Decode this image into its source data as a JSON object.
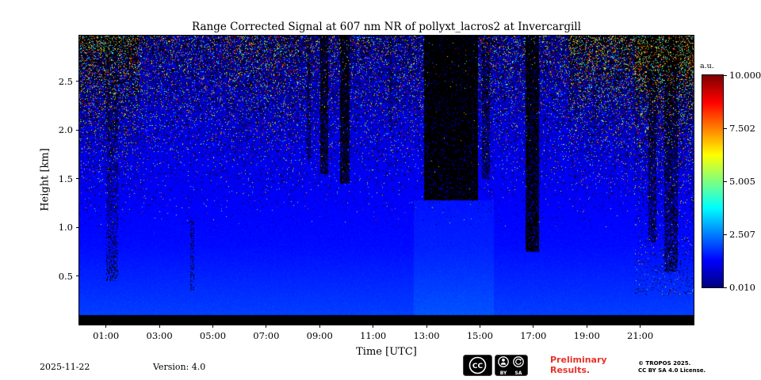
{
  "title": "Range Corrected Signal at 607 nm NR of pollyxt_lacros2 at Invercargill",
  "colors": {
    "preliminary_text": "#e8332a",
    "background_low_signal": "#0a2fe0",
    "missing_data": "#000000"
  },
  "chart_data": {
    "type": "heatmap",
    "title": "Range Corrected Signal at 607 nm NR of pollyxt_lacros2 at Invercargill",
    "xlabel": "Time [UTC]",
    "ylabel": "Height [km]",
    "x_range_hours": [
      0,
      23
    ],
    "y_range_km": [
      0,
      2.97
    ],
    "x_ticks": [
      "01:00",
      "03:00",
      "05:00",
      "07:00",
      "09:00",
      "11:00",
      "13:00",
      "15:00",
      "17:00",
      "19:00",
      "21:00"
    ],
    "x_tick_hours": [
      1,
      3,
      5,
      7,
      9,
      11,
      13,
      15,
      17,
      19,
      21
    ],
    "y_ticks": [
      "0.5",
      "1.0",
      "1.5",
      "2.0",
      "2.5"
    ],
    "y_tick_values": [
      0.5,
      1.0,
      1.5,
      2.0,
      2.5
    ],
    "colorbar": {
      "label": "a.u.",
      "ticks": [
        "10.000",
        "7.502",
        "5.005",
        "2.507",
        "0.010"
      ],
      "tick_values": [
        10.0,
        7.502,
        5.005,
        2.507,
        0.01
      ],
      "range": [
        0.01,
        10.0
      ],
      "colormap": "jet",
      "position": "right"
    },
    "grid": false,
    "legend": false,
    "background": {
      "base": 0.158,
      "slope_per_km": 0.028,
      "low_boost_below_km": 0.8,
      "low_boost_rate": 0.045,
      "jitter": 0.02,
      "overlap_black_km": 0.1,
      "bright_patches": [
        {
          "t0": 12.5,
          "t1": 15.5,
          "h0": 0.0,
          "h1": 1.28,
          "dv": 0.02
        }
      ]
    },
    "clouds": [
      {
        "t0": 1.0,
        "t1": 1.45,
        "h0": 0.45,
        "h1": 2.97,
        "d": 0.28
      },
      {
        "t0": 4.15,
        "t1": 4.3,
        "h0": 0.35,
        "h1": 1.1,
        "d": 0.3
      },
      {
        "t0": 8.5,
        "t1": 8.65,
        "h0": 1.7,
        "h1": 2.97,
        "d": 0.45
      },
      {
        "t0": 9.0,
        "t1": 9.3,
        "h0": 1.55,
        "h1": 2.97,
        "d": 0.7
      },
      {
        "t0": 9.75,
        "t1": 10.1,
        "h0": 1.45,
        "h1": 2.97,
        "d": 0.78
      },
      {
        "t0": 11.6,
        "t1": 11.72,
        "h0": 2.0,
        "h1": 2.97,
        "d": 0.3
      },
      {
        "t0": 12.9,
        "t1": 14.9,
        "h0": 1.28,
        "h1": 2.97,
        "d": 0.93
      },
      {
        "t0": 15.05,
        "t1": 15.35,
        "h0": 1.5,
        "h1": 2.97,
        "d": 0.5
      },
      {
        "t0": 16.7,
        "t1": 17.2,
        "h0": 0.75,
        "h1": 2.97,
        "d": 0.85
      },
      {
        "t0": 21.3,
        "t1": 21.6,
        "h0": 0.85,
        "h1": 2.97,
        "d": 0.5
      },
      {
        "t0": 21.9,
        "t1": 22.4,
        "h0": 0.55,
        "h1": 2.97,
        "d": 0.5
      }
    ],
    "noise": {
      "base_h_km": 0.9,
      "exponent": 1.8,
      "scale": 0.55,
      "color_fraction": 0.27,
      "column_boosts": [
        {
          "t0": 0.0,
          "t1": 2.2,
          "factor": 1.8
        },
        {
          "t0": 5.5,
          "t1": 8.2,
          "factor": 1.25
        },
        {
          "t0": 18.3,
          "t1": 20.8,
          "factor": 1.7
        },
        {
          "t0": 20.8,
          "t1": 23.0,
          "factor": 2.2,
          "extra_low": 0.06
        }
      ]
    }
  },
  "footer": {
    "date": "2025-11-22",
    "version": "Version: 4.0",
    "preliminary_line1": "Preliminary",
    "preliminary_line2": "Results.",
    "copyright_line1": "© TROPOS 2025.",
    "copyright_line2": "CC BY SA 4.0 License.",
    "badge": {
      "cc": "CC",
      "by": "BY",
      "sa": "SA"
    }
  }
}
